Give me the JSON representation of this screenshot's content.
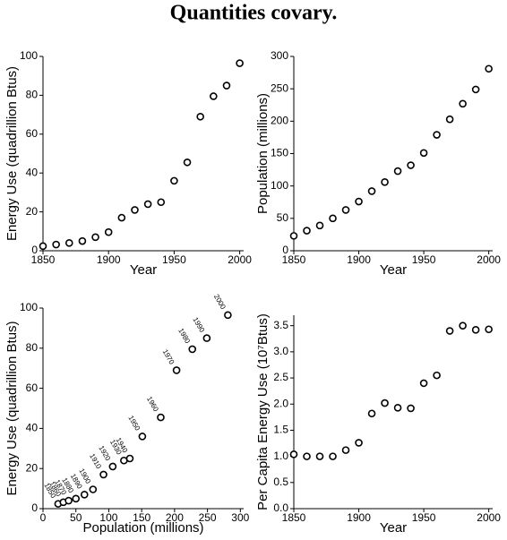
{
  "title": "Quantities covary.",
  "chart_data": [
    {
      "type": "scatter",
      "xlabel": "Year",
      "ylabel": "Energy Use (quadrillion Btus)",
      "x": [
        1850,
        1860,
        1870,
        1880,
        1890,
        1900,
        1910,
        1920,
        1930,
        1940,
        1950,
        1960,
        1970,
        1980,
        1990,
        2000
      ],
      "values": [
        2.4,
        3.2,
        4,
        5,
        7,
        9.6,
        17,
        21,
        24,
        25,
        36,
        45.5,
        69,
        79.5,
        85,
        96.5
      ],
      "xlim": [
        1850,
        2003
      ],
      "ylim": [
        0,
        100
      ],
      "xticks": [
        1850,
        1900,
        1950,
        2000
      ],
      "yticks": [
        0,
        20,
        40,
        60,
        80,
        100
      ],
      "color": "#000000"
    },
    {
      "type": "scatter",
      "xlabel": "Year",
      "ylabel": "Population (millions)",
      "x": [
        1850,
        1860,
        1870,
        1880,
        1890,
        1900,
        1910,
        1920,
        1930,
        1940,
        1950,
        1960,
        1970,
        1980,
        1990,
        2000
      ],
      "values": [
        23,
        31,
        39,
        50,
        63,
        76,
        92,
        106,
        123,
        132,
        151,
        179,
        203,
        227,
        249,
        281
      ],
      "xlim": [
        1850,
        2003
      ],
      "ylim": [
        0,
        300
      ],
      "xticks": [
        1850,
        1900,
        1950,
        2000
      ],
      "yticks": [
        0,
        50,
        100,
        150,
        200,
        250,
        300
      ],
      "color": "#000000"
    },
    {
      "type": "scatter",
      "xlabel": "Population (millions)",
      "ylabel": "Energy Use (quadrillion Btus)",
      "x": [
        23,
        31,
        39,
        50,
        63,
        76,
        92,
        106,
        123,
        132,
        151,
        179,
        203,
        227,
        249,
        281
      ],
      "values": [
        2.4,
        3.2,
        4,
        5,
        7,
        9.6,
        17,
        21,
        24,
        25,
        36,
        45.5,
        69,
        79.5,
        85,
        96.5
      ],
      "point_labels": [
        "1850",
        "1860",
        "1870",
        "1880",
        "1890",
        "1900",
        "1910",
        "1920",
        "1930",
        "1940",
        "1950",
        "1960",
        "1970",
        "1980",
        "1990",
        "2000"
      ],
      "xlim": [
        0,
        305
      ],
      "ylim": [
        0,
        100
      ],
      "xticks": [
        0,
        50,
        100,
        150,
        200,
        250,
        300
      ],
      "yticks": [
        0,
        20,
        40,
        60,
        80,
        100
      ],
      "color": "#000000"
    },
    {
      "type": "scatter",
      "xlabel": "Year",
      "ylabel": "Per Capita Energy Use (10⁷Btus)",
      "x": [
        1850,
        1860,
        1870,
        1880,
        1890,
        1900,
        1910,
        1920,
        1930,
        1940,
        1950,
        1960,
        1970,
        1980,
        1990,
        2000
      ],
      "values": [
        1.04,
        1.0,
        1.0,
        1.0,
        1.12,
        1.26,
        1.82,
        2.02,
        1.93,
        1.92,
        2.4,
        2.55,
        3.4,
        3.5,
        3.42,
        3.43
      ],
      "xlim": [
        1850,
        2003
      ],
      "ylim": [
        0,
        3.7
      ],
      "xticks": [
        1850,
        1900,
        1950,
        2000
      ],
      "yticks": [
        {
          "value": 0,
          "label": "0.0"
        },
        {
          "value": 0.5,
          "label": "0.5"
        },
        {
          "value": 1,
          "label": "1.0"
        },
        {
          "value": 1.5,
          "label": "1.5"
        },
        {
          "value": 2,
          "label": "2.0"
        },
        {
          "value": 2.5,
          "label": "2.5"
        },
        {
          "value": 3,
          "label": "3.0"
        },
        {
          "value": 3.5,
          "label": "3.5"
        }
      ],
      "color": "#000000"
    }
  ]
}
